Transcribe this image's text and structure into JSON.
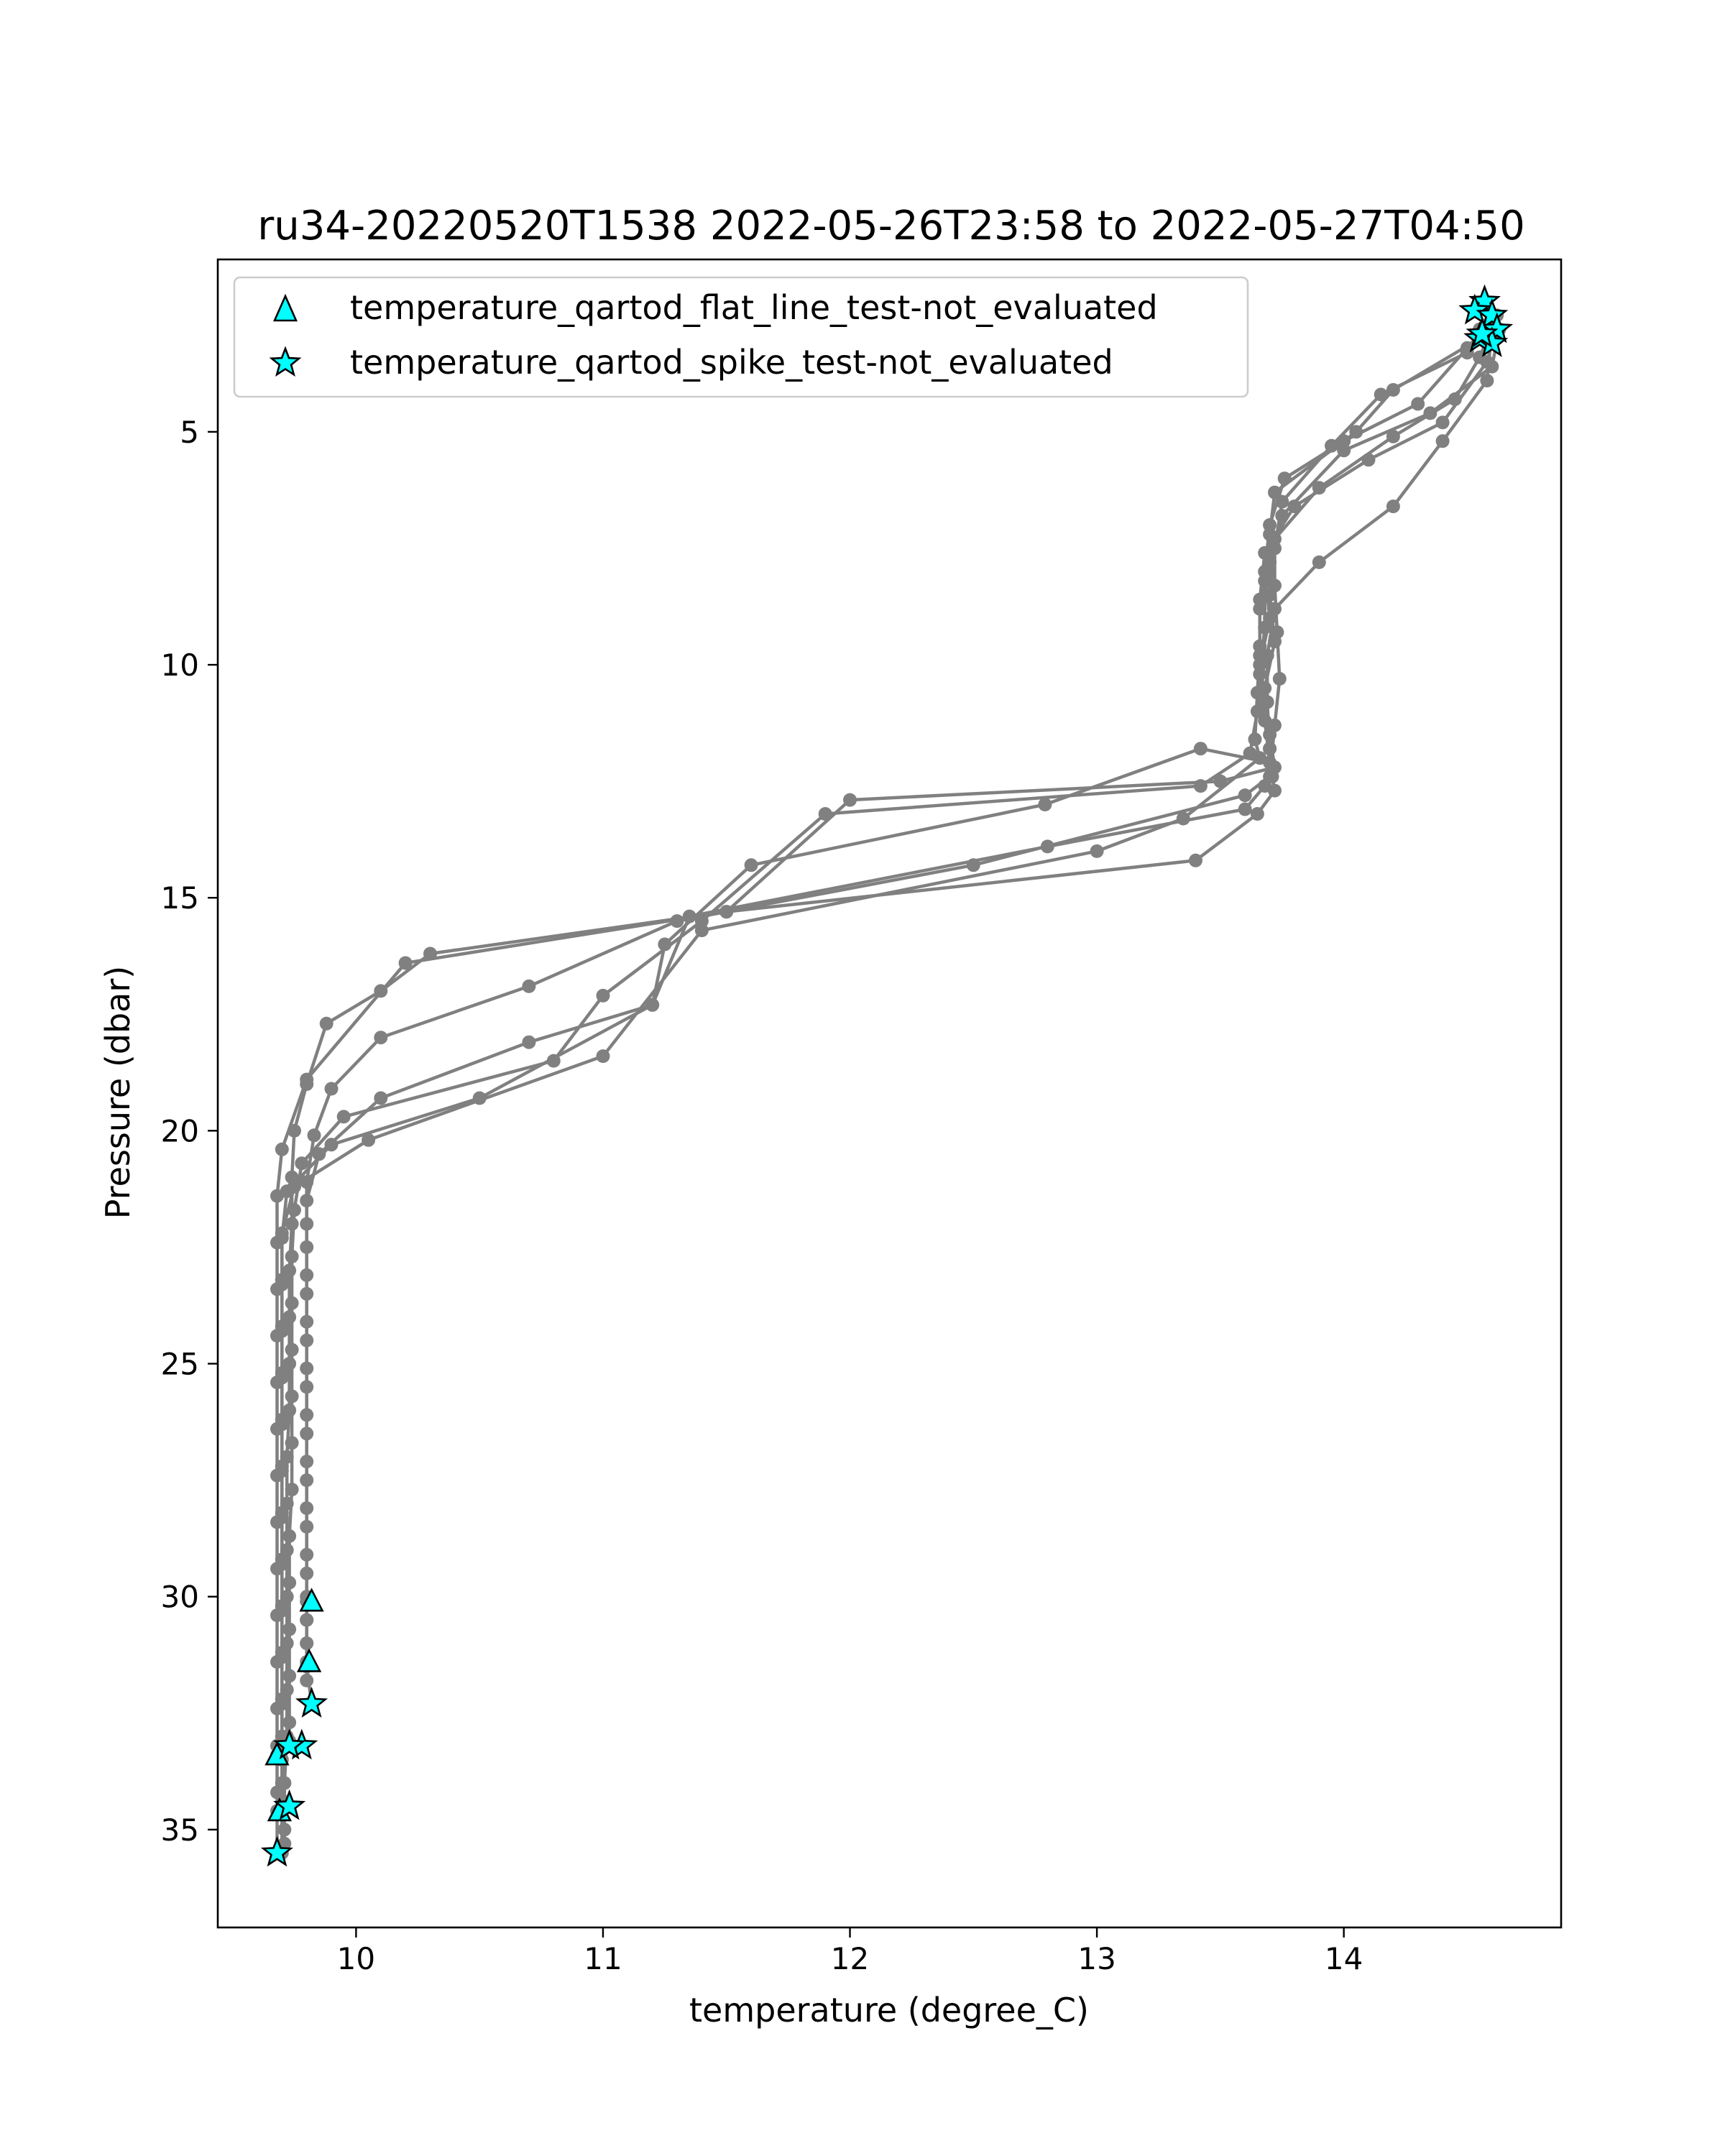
{
  "chart_data": {
    "type": "line",
    "title": "ru34-20220520T1538 2022-05-26T23:58 to 2022-05-27T04:50",
    "xlabel": "temperature (degree_C)",
    "ylabel": "Pressure (dbar)",
    "xlim": [
      9.44,
      14.88
    ],
    "ylim": [
      37.1,
      1.3
    ],
    "y_inverted": true,
    "grid": false,
    "legend_position": "top-left",
    "x_ticks": [
      10,
      11,
      12,
      13,
      14
    ],
    "y_ticks": [
      5,
      10,
      15,
      20,
      25,
      30,
      35
    ],
    "line_color": "#808080",
    "flag_color": "#00ffff",
    "series": [
      {
        "x": [
          14.55,
          14.5,
          14.15,
          13.95,
          13.75,
          13.72,
          13.7,
          13.72,
          13.68,
          13.7,
          13.72,
          13.5,
          12.0,
          11.5,
          10.3,
          10.1,
          9.88,
          9.8,
          9.75,
          9.74,
          9.74,
          9.73,
          9.73,
          9.73,
          9.73,
          9.72,
          9.72,
          9.72,
          9.72,
          9.72,
          9.72,
          9.72,
          9.71,
          9.71,
          9.71,
          9.71,
          9.7
        ],
        "y": [
          2.8,
          3.3,
          4.2,
          5.3,
          6.5,
          7.5,
          8.5,
          9.5,
          10.5,
          11.5,
          12.2,
          12.5,
          12.9,
          15.3,
          16.2,
          17.0,
          17.7,
          19.0,
          20.0,
          21.0,
          22.0,
          23.0,
          24.0,
          25.0,
          26.0,
          27.0,
          28.0,
          29.0,
          30.0,
          31.0,
          32.0,
          33.0,
          34.0,
          34.5,
          35.0,
          35.3,
          35.5
        ]
      },
      {
        "x": [
          14.6,
          14.55,
          14.2,
          14.05,
          13.72,
          13.7,
          13.68,
          13.68,
          13.66,
          13.68,
          13.7,
          13.42,
          12.79,
          11.6,
          11.25,
          11.2,
          10.7,
          10.1,
          9.85,
          9.8,
          9.8,
          9.8,
          9.8,
          9.8,
          9.8,
          9.8,
          9.8,
          9.8,
          9.8,
          9.8,
          9.8,
          9.8,
          9.82
        ],
        "y": [
          2.6,
          3.0,
          4.1,
          5.0,
          6.3,
          7.2,
          8.2,
          9.2,
          10.2,
          11.2,
          12.1,
          11.8,
          13.0,
          14.3,
          16.0,
          17.3,
          18.1,
          19.3,
          20.5,
          21.5,
          22.5,
          23.5,
          24.5,
          25.5,
          26.5,
          27.5,
          28.5,
          29.5,
          30.0,
          30.5,
          31.0,
          31.5,
          32.3
        ]
      },
      {
        "x": [
          14.62,
          14.55,
          14.45,
          14.2,
          13.9,
          13.72,
          13.72,
          13.73,
          13.74,
          13.72,
          13.7,
          13.6,
          12.5,
          11.3,
          10.7,
          10.1,
          9.9,
          9.83,
          9.8,
          9.8,
          9.8,
          9.8,
          9.8,
          9.8,
          9.8,
          9.8,
          9.8,
          9.8,
          9.8,
          9.8,
          9.8,
          9.8
        ],
        "y": [
          2.5,
          3.4,
          4.3,
          5.1,
          6.2,
          7.3,
          8.3,
          9.3,
          10.3,
          11.3,
          12.4,
          12.8,
          14.3,
          15.5,
          16.9,
          18.0,
          19.1,
          20.1,
          21.1,
          22.0,
          23.1,
          24.1,
          25.1,
          26.1,
          27.1,
          28.1,
          29.1,
          30.1,
          30.5,
          31.0,
          31.4,
          31.8
        ]
      },
      {
        "x": [
          14.58,
          14.5,
          14.3,
          14.0,
          13.76,
          13.7,
          13.68,
          13.7,
          13.66,
          13.65,
          13.62,
          13.42,
          11.9,
          11.4,
          11.0,
          10.8,
          9.95,
          9.78,
          9.75,
          9.74,
          9.74,
          9.74,
          9.74,
          9.74,
          9.74,
          9.73,
          9.73,
          9.73,
          9.73,
          9.73,
          9.73,
          9.72
        ],
        "y": [
          2.7,
          3.2,
          4.4,
          5.2,
          6.0,
          7.0,
          8.0,
          9.0,
          10.0,
          11.0,
          11.9,
          12.6,
          13.2,
          15.5,
          17.1,
          18.5,
          19.7,
          20.7,
          21.7,
          22.7,
          23.7,
          24.7,
          25.7,
          26.7,
          27.7,
          28.7,
          29.7,
          30.7,
          31.7,
          32.7,
          33.1,
          33.2
        ]
      },
      {
        "x": [
          14.61,
          14.58,
          14.4,
          14.1,
          13.8,
          13.68,
          13.66,
          13.66,
          13.65,
          13.64,
          13.66,
          13.35,
          13.0,
          11.4,
          11.0,
          10.05,
          9.75,
          9.7,
          9.7,
          9.7,
          9.7,
          9.7,
          9.7,
          9.7,
          9.7,
          9.7,
          9.7,
          9.7,
          9.7,
          9.7,
          9.7,
          9.7,
          9.7
        ],
        "y": [
          2.9,
          3.5,
          4.8,
          5.6,
          6.6,
          7.6,
          8.6,
          9.6,
          10.6,
          11.6,
          12.0,
          13.3,
          14.0,
          15.7,
          18.4,
          20.2,
          21.2,
          22.2,
          23.2,
          24.2,
          25.2,
          26.2,
          27.2,
          28.2,
          29.2,
          30.2,
          31.2,
          32.2,
          33.0,
          33.5,
          34.0,
          34.5,
          35.4
        ]
      },
      {
        "x": [
          14.63,
          14.6,
          14.35,
          14.0,
          13.75,
          13.7,
          13.66,
          13.66,
          13.68,
          13.7,
          13.68,
          13.6,
          12.8,
          11.35,
          11.2,
          10.5,
          9.9,
          9.72,
          9.7,
          9.7,
          9.7,
          9.7,
          9.7,
          9.7,
          9.7,
          9.7,
          9.7,
          9.7,
          9.7,
          9.7,
          9.71,
          9.71
        ],
        "y": [
          2.8,
          3.6,
          4.6,
          5.4,
          6.8,
          7.8,
          8.8,
          9.8,
          10.8,
          11.8,
          12.6,
          13.1,
          13.9,
          15.4,
          17.3,
          19.3,
          20.3,
          21.3,
          22.3,
          23.3,
          24.3,
          25.3,
          26.3,
          27.3,
          28.3,
          29.3,
          30.3,
          31.3,
          32.3,
          33.3,
          34.0,
          34.4
        ]
      },
      {
        "x": [
          14.6,
          14.58,
          14.4,
          14.2,
          13.9,
          13.72,
          13.69,
          13.69,
          13.7,
          13.71,
          13.72,
          13.65,
          13.4,
          11.5,
          10.2,
          9.8,
          9.7,
          9.68,
          9.68,
          9.68,
          9.68,
          9.68,
          9.68,
          9.68,
          9.68,
          9.68,
          9.68,
          9.68,
          9.68,
          9.68,
          9.68,
          9.68,
          9.68,
          9.68
        ],
        "y": [
          2.8,
          3.9,
          5.2,
          6.6,
          7.8,
          8.8,
          9.8,
          10.8,
          11.8,
          12.4,
          12.7,
          13.2,
          14.2,
          15.3,
          16.4,
          18.9,
          20.4,
          21.4,
          22.4,
          23.4,
          24.4,
          25.4,
          26.4,
          27.4,
          28.4,
          29.4,
          30.4,
          31.4,
          32.4,
          33.2,
          33.4,
          34.2,
          34.6,
          35.5
        ]
      }
    ],
    "flag_series": [
      {
        "name": "temperature_qartod_flat_line_test-not_evaluated",
        "marker": "triangle",
        "x": [
          9.82,
          9.81,
          9.68,
          9.69
        ],
        "y": [
          30.1,
          31.4,
          33.4,
          34.6
        ]
      },
      {
        "name": "temperature_qartod_spike_test-not_evaluated",
        "marker": "star",
        "x": [
          14.57,
          14.53,
          14.6,
          14.62,
          14.55,
          14.6,
          14.56,
          9.82,
          9.78,
          9.73,
          9.73,
          9.68
        ],
        "y": [
          2.2,
          2.4,
          2.5,
          2.8,
          3.0,
          3.1,
          2.9,
          32.3,
          33.2,
          33.2,
          34.5,
          35.5
        ]
      }
    ]
  }
}
